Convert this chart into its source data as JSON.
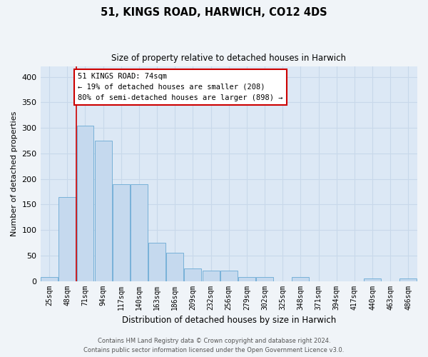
{
  "title": "51, KINGS ROAD, HARWICH, CO12 4DS",
  "subtitle": "Size of property relative to detached houses in Harwich",
  "xlabel": "Distribution of detached houses by size in Harwich",
  "ylabel": "Number of detached properties",
  "categories": [
    "25sqm",
    "48sqm",
    "71sqm",
    "94sqm",
    "117sqm",
    "140sqm",
    "163sqm",
    "186sqm",
    "209sqm",
    "232sqm",
    "256sqm",
    "279sqm",
    "302sqm",
    "325sqm",
    "348sqm",
    "371sqm",
    "394sqm",
    "417sqm",
    "440sqm",
    "463sqm",
    "486sqm"
  ],
  "values": [
    8,
    165,
    305,
    275,
    190,
    190,
    75,
    55,
    25,
    20,
    20,
    8,
    8,
    0,
    8,
    0,
    0,
    0,
    5,
    0,
    5
  ],
  "bar_color": "#c5d9ee",
  "bar_edgecolor": "#6aaad4",
  "background_color": "#dce8f5",
  "vline_color": "#cc0000",
  "vline_position": 1.5,
  "annotation_text": "51 KINGS ROAD: 74sqm\n← 19% of detached houses are smaller (208)\n80% of semi-detached houses are larger (898) →",
  "annotation_box_color": "white",
  "annotation_box_edgecolor": "#cc0000",
  "ylim": [
    0,
    420
  ],
  "yticks": [
    0,
    50,
    100,
    150,
    200,
    250,
    300,
    350,
    400
  ],
  "grid_color": "#c8d8ea",
  "footer_line1": "Contains HM Land Registry data © Crown copyright and database right 2024.",
  "footer_line2": "Contains public sector information licensed under the Open Government Licence v3.0.",
  "fig_facecolor": "#f0f4f8"
}
